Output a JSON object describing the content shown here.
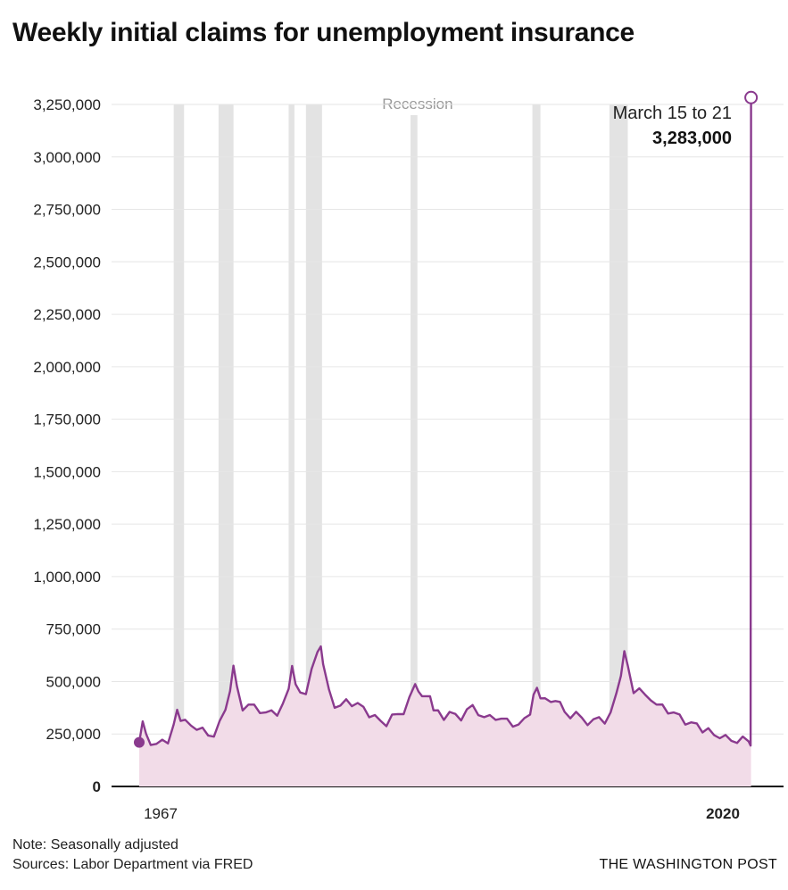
{
  "chart_data": {
    "type": "area",
    "title": "Weekly initial claims for unemployment insurance",
    "xlabel": "",
    "ylabel": "",
    "xlim": [
      1967.0,
      2020.25
    ],
    "ylim": [
      0,
      3250000
    ],
    "y_ticks": [
      {
        "value": 0,
        "label": "0"
      },
      {
        "value": 250000,
        "label": "250,000"
      },
      {
        "value": 500000,
        "label": "500,000"
      },
      {
        "value": 750000,
        "label": "750,000"
      },
      {
        "value": 1000000,
        "label": "1,000,000"
      },
      {
        "value": 1250000,
        "label": "1,250,000"
      },
      {
        "value": 1500000,
        "label": "1,500,000"
      },
      {
        "value": 1750000,
        "label": "1,750,000"
      },
      {
        "value": 2000000,
        "label": "2,000,000"
      },
      {
        "value": 2250000,
        "label": "2,250,000"
      },
      {
        "value": 2500000,
        "label": "2,500,000"
      },
      {
        "value": 2750000,
        "label": "2,750,000"
      },
      {
        "value": 3000000,
        "label": "3,000,000"
      },
      {
        "value": 3250000,
        "label": "3,250,000"
      }
    ],
    "x_tick_labels": {
      "start": "1967",
      "end": "2020"
    },
    "recessions": [
      {
        "start": 1970.0,
        "end": 1970.9
      },
      {
        "start": 1973.9,
        "end": 1975.2
      },
      {
        "start": 1980.0,
        "end": 1980.5
      },
      {
        "start": 1981.5,
        "end": 1982.9
      },
      {
        "start": 1990.6,
        "end": 1991.2
      },
      {
        "start": 2001.2,
        "end": 2001.9
      },
      {
        "start": 2007.9,
        "end": 2009.5
      }
    ],
    "recession_label": "Recession",
    "series": [
      {
        "name": "Weekly initial claims",
        "color": "#8a3a8e",
        "fill": "#f2dce8",
        "points": [
          [
            1967.0,
            210000
          ],
          [
            1967.3,
            300000
          ],
          [
            1967.6,
            230000
          ],
          [
            1968.0,
            200000
          ],
          [
            1968.5,
            190000
          ],
          [
            1969.0,
            200000
          ],
          [
            1969.5,
            210000
          ],
          [
            1970.0,
            280000
          ],
          [
            1970.3,
            340000
          ],
          [
            1970.6,
            320000
          ],
          [
            1971.0,
            300000
          ],
          [
            1971.5,
            290000
          ],
          [
            1972.0,
            280000
          ],
          [
            1972.5,
            260000
          ],
          [
            1973.0,
            240000
          ],
          [
            1973.5,
            250000
          ],
          [
            1974.0,
            290000
          ],
          [
            1974.5,
            360000
          ],
          [
            1974.9,
            470000
          ],
          [
            1975.2,
            550000
          ],
          [
            1975.5,
            470000
          ],
          [
            1976.0,
            380000
          ],
          [
            1976.5,
            390000
          ],
          [
            1977.0,
            380000
          ],
          [
            1977.5,
            370000
          ],
          [
            1978.0,
            350000
          ],
          [
            1978.5,
            350000
          ],
          [
            1979.0,
            360000
          ],
          [
            1979.5,
            390000
          ],
          [
            1980.0,
            450000
          ],
          [
            1980.3,
            600000
          ],
          [
            1980.6,
            480000
          ],
          [
            1981.0,
            430000
          ],
          [
            1981.5,
            440000
          ],
          [
            1982.0,
            550000
          ],
          [
            1982.5,
            620000
          ],
          [
            1982.8,
            670000
          ],
          [
            1983.0,
            570000
          ],
          [
            1983.5,
            440000
          ],
          [
            1984.0,
            380000
          ],
          [
            1984.5,
            370000
          ],
          [
            1985.0,
            390000
          ],
          [
            1985.5,
            390000
          ],
          [
            1986.0,
            380000
          ],
          [
            1986.5,
            380000
          ],
          [
            1987.0,
            340000
          ],
          [
            1987.5,
            320000
          ],
          [
            1988.0,
            310000
          ],
          [
            1988.5,
            300000
          ],
          [
            1989.0,
            320000
          ],
          [
            1989.5,
            340000
          ],
          [
            1990.0,
            360000
          ],
          [
            1990.5,
            400000
          ],
          [
            1991.0,
            480000
          ],
          [
            1991.3,
            470000
          ],
          [
            1991.6,
            430000
          ],
          [
            1992.0,
            420000
          ],
          [
            1992.3,
            450000
          ],
          [
            1992.6,
            360000
          ],
          [
            1993.0,
            350000
          ],
          [
            1993.5,
            340000
          ],
          [
            1994.0,
            350000
          ],
          [
            1994.5,
            330000
          ],
          [
            1995.0,
            340000
          ],
          [
            1995.5,
            360000
          ],
          [
            1996.0,
            370000
          ],
          [
            1996.5,
            340000
          ],
          [
            1997.0,
            320000
          ],
          [
            1997.5,
            320000
          ],
          [
            1998.0,
            320000
          ],
          [
            1998.5,
            310000
          ],
          [
            1999.0,
            300000
          ],
          [
            1999.5,
            290000
          ],
          [
            2000.0,
            280000
          ],
          [
            2000.5,
            300000
          ],
          [
            2001.0,
            350000
          ],
          [
            2001.3,
            420000
          ],
          [
            2001.6,
            470000
          ],
          [
            2001.9,
            430000
          ],
          [
            2002.3,
            400000
          ],
          [
            2002.8,
            400000
          ],
          [
            2003.2,
            420000
          ],
          [
            2003.6,
            380000
          ],
          [
            2004.0,
            350000
          ],
          [
            2004.5,
            340000
          ],
          [
            2005.0,
            330000
          ],
          [
            2005.5,
            320000
          ],
          [
            2006.0,
            310000
          ],
          [
            2006.5,
            320000
          ],
          [
            2007.0,
            320000
          ],
          [
            2007.5,
            320000
          ],
          [
            2008.0,
            350000
          ],
          [
            2008.5,
            430000
          ],
          [
            2008.9,
            550000
          ],
          [
            2009.2,
            640000
          ],
          [
            2009.5,
            560000
          ],
          [
            2010.0,
            470000
          ],
          [
            2010.5,
            460000
          ],
          [
            2011.0,
            420000
          ],
          [
            2011.5,
            410000
          ],
          [
            2012.0,
            380000
          ],
          [
            2012.5,
            370000
          ],
          [
            2013.0,
            350000
          ],
          [
            2013.5,
            340000
          ],
          [
            2014.0,
            320000
          ],
          [
            2014.5,
            300000
          ],
          [
            2015.0,
            290000
          ],
          [
            2015.5,
            275000
          ],
          [
            2016.0,
            265000
          ],
          [
            2016.5,
            260000
          ],
          [
            2017.0,
            245000
          ],
          [
            2017.5,
            240000
          ],
          [
            2018.0,
            225000
          ],
          [
            2018.5,
            215000
          ],
          [
            2019.0,
            220000
          ],
          [
            2019.5,
            215000
          ],
          [
            2020.0,
            210000
          ],
          [
            2020.18,
            210000
          ],
          [
            2020.22,
            3283000
          ]
        ]
      }
    ],
    "annotation": {
      "label": "March 15 to 21",
      "value_label": "3,283,000",
      "x": 2020.22,
      "value": 3283000
    },
    "start_marker": {
      "x": 1967.0,
      "value": 210000
    }
  },
  "footer": {
    "note": "Note: Seasonally adjusted",
    "sources": "Sources: Labor Department via FRED",
    "brand": "THE WASHINGTON POST"
  }
}
